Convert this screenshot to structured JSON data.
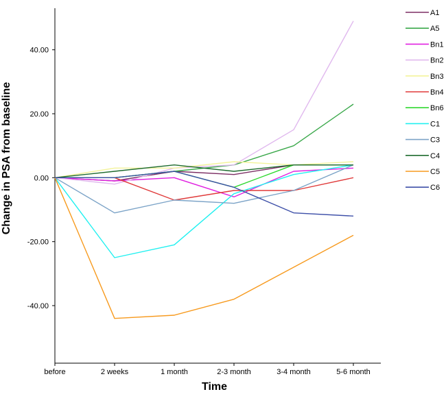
{
  "chart_data": {
    "type": "line",
    "xlabel": "Time",
    "ylabel": "Change in PSA from baseline",
    "categories": [
      "before",
      "2 weeks",
      "1 month",
      "2-3 month",
      "3-4 month",
      "5-6 month"
    ],
    "y_ticks": [
      -40,
      -20,
      0,
      20,
      40
    ],
    "y_tick_labels": [
      "-40.00",
      "-20.00",
      "0.00",
      "20.00",
      "40.00"
    ],
    "ylim": [
      -58,
      53
    ],
    "legend_position": "top-right",
    "grid": false,
    "series": [
      {
        "name": "A1",
        "color": "#7b2d63",
        "values": [
          0,
          -1,
          2,
          1,
          4,
          4
        ]
      },
      {
        "name": "A5",
        "color": "#3aa84a",
        "values": [
          0,
          0,
          2,
          4,
          10,
          23
        ]
      },
      {
        "name": "Bn1",
        "color": "#e020e0",
        "values": [
          0,
          -1,
          0,
          -6,
          2,
          3
        ]
      },
      {
        "name": "Bn2",
        "color": "#e0b8ee",
        "values": [
          0,
          -2,
          3,
          4,
          15,
          49
        ]
      },
      {
        "name": "Bn3",
        "color": "#f3f39a",
        "values": [
          0,
          3,
          3,
          5,
          4,
          5
        ]
      },
      {
        "name": "Bn4",
        "color": "#e03a3a",
        "values": [
          0,
          0,
          -7,
          -4,
          -4,
          0
        ]
      },
      {
        "name": "Bn6",
        "color": "#2fd82f",
        "values": [
          0,
          0,
          2,
          -3,
          4,
          4
        ]
      },
      {
        "name": "C1",
        "color": "#20f0f0",
        "values": [
          0,
          -25,
          -21,
          -5,
          1,
          4
        ]
      },
      {
        "name": "C3",
        "color": "#7ba3c7",
        "values": [
          0,
          -11,
          -7,
          -8,
          -4,
          4
        ]
      },
      {
        "name": "C4",
        "color": "#1e6b2e",
        "values": [
          0,
          2,
          4,
          2,
          4,
          4
        ]
      },
      {
        "name": "C5",
        "color": "#f79a1e",
        "values": [
          0,
          -44,
          -43,
          -38,
          -28,
          -18
        ]
      },
      {
        "name": "C6",
        "color": "#3d4fa8",
        "values": [
          0,
          0,
          2,
          -3,
          -11,
          -12
        ]
      }
    ]
  }
}
